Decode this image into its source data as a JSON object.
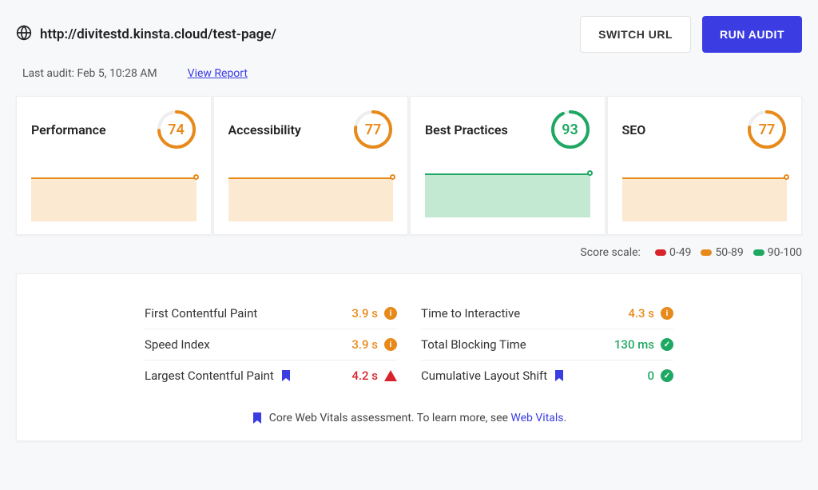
{
  "header": {
    "url": "http://divitestd.kinsta.cloud/test-page/",
    "switch_url_label": "SWITCH URL",
    "run_audit_label": "RUN AUDIT"
  },
  "subheader": {
    "last_audit_text": "Last audit: Feb 5, 10:28 AM",
    "view_report_label": "View Report"
  },
  "colors": {
    "warn": "#e88a1b",
    "good": "#1fa863",
    "bad": "#d8232a",
    "primary": "#3b3de3",
    "warn_fill": "#fce9d2",
    "good_fill": "#c3e9d3",
    "ring_bg": "#eeeeee"
  },
  "scores": [
    {
      "title": "Performance",
      "value": 74,
      "level": "warn"
    },
    {
      "title": "Accessibility",
      "value": 77,
      "level": "warn"
    },
    {
      "title": "Best Practices",
      "value": 93,
      "level": "good"
    },
    {
      "title": "SEO",
      "value": 77,
      "level": "warn"
    }
  ],
  "scale": {
    "label": "Score scale:",
    "ranges": [
      {
        "label": "0-49",
        "color": "#d8232a"
      },
      {
        "label": "50-89",
        "color": "#e88a1b"
      },
      {
        "label": "90-100",
        "color": "#1fa863"
      }
    ]
  },
  "metrics_left": [
    {
      "name": "First Contentful Paint",
      "value": "3.9 s",
      "status": "warn",
      "bookmark": false
    },
    {
      "name": "Speed Index",
      "value": "3.9 s",
      "status": "warn",
      "bookmark": false
    },
    {
      "name": "Largest Contentful Paint",
      "value": "4.2 s",
      "status": "bad-tri",
      "bookmark": true
    }
  ],
  "metrics_right": [
    {
      "name": "Time to Interactive",
      "value": "4.3 s",
      "status": "warn",
      "bookmark": false
    },
    {
      "name": "Total Blocking Time",
      "value": "130 ms",
      "status": "good",
      "bookmark": false
    },
    {
      "name": "Cumulative Layout Shift",
      "value": "0",
      "status": "good",
      "bookmark": true
    }
  ],
  "footer": {
    "text_prefix": "Core Web Vitals assessment. To learn more, see ",
    "link_text": "Web Vitals",
    "text_suffix": "."
  }
}
